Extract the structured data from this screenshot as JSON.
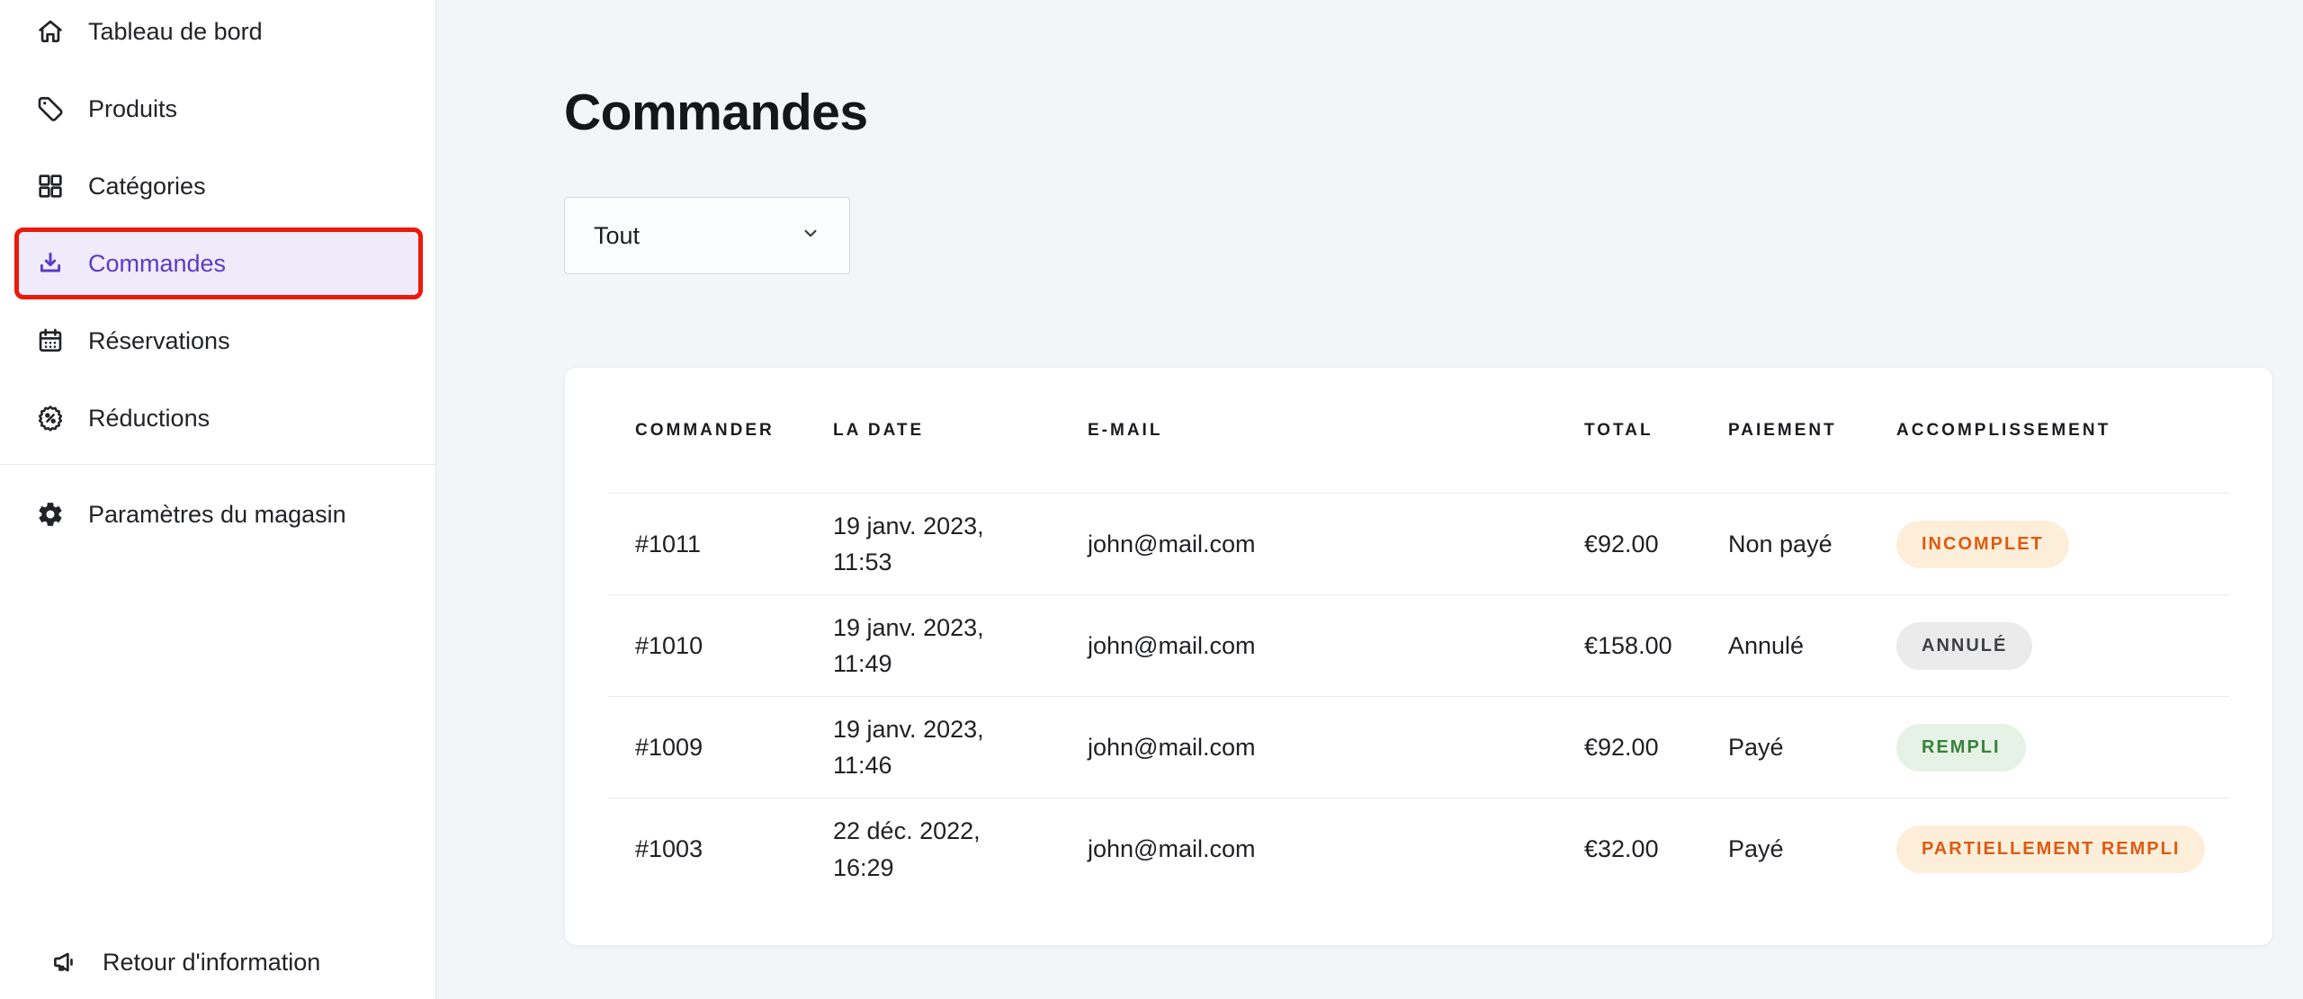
{
  "colors": {
    "accent_purple": "#5b3cc4",
    "accent_purple_bg": "#efebfa",
    "highlight_red": "#ea1b0c",
    "page_bg": "#f4f5f9",
    "badge_warning_bg": "#fdeeda",
    "badge_warning_text": "#dd5b10",
    "badge_neutral_bg": "#ebebec",
    "badge_neutral_text": "#3f4043",
    "badge_success_bg": "#e5f2e5",
    "badge_success_text": "#37813c"
  },
  "sidebar": {
    "items": [
      {
        "id": "dashboard",
        "label": "Tableau de bord",
        "icon": "home-icon",
        "active": false
      },
      {
        "id": "products",
        "label": "Produits",
        "icon": "tag-icon",
        "active": false
      },
      {
        "id": "categories",
        "label": "Catégories",
        "icon": "grid-icon",
        "active": false
      },
      {
        "id": "orders",
        "label": "Commandes",
        "icon": "download-icon",
        "active": true
      },
      {
        "id": "reservations",
        "label": "Réservations",
        "icon": "calendar-icon",
        "active": false
      },
      {
        "id": "discounts",
        "label": "Réductions",
        "icon": "discount-icon",
        "active": false
      }
    ],
    "secondary_items": [
      {
        "id": "store-settings",
        "label": "Paramètres du magasin",
        "icon": "gear-icon",
        "active": false
      }
    ],
    "footer_item": {
      "id": "feedback",
      "label": "Retour d'information",
      "icon": "megaphone-icon"
    }
  },
  "main": {
    "title": "Commandes",
    "filter": {
      "value": "Tout"
    },
    "table": {
      "columns": [
        "COMMANDER",
        "LA DATE",
        "E-MAIL",
        "TOTAL",
        "PAIEMENT",
        "ACCOMPLISSEMENT"
      ],
      "rows": [
        {
          "order": "#1011",
          "date_line1": "19 janv. 2023,",
          "date_line2": "11:53",
          "email": "john@mail.com",
          "total": "€92.00",
          "payment": "Non payé",
          "fulfillment": {
            "label": "INCOMPLET",
            "style": "warning"
          }
        },
        {
          "order": "#1010",
          "date_line1": "19 janv. 2023,",
          "date_line2": "11:49",
          "email": "john@mail.com",
          "total": "€158.00",
          "payment": "Annulé",
          "fulfillment": {
            "label": "ANNULÉ",
            "style": "neutral"
          }
        },
        {
          "order": "#1009",
          "date_line1": "19 janv. 2023,",
          "date_line2": "11:46",
          "email": "john@mail.com",
          "total": "€92.00",
          "payment": "Payé",
          "fulfillment": {
            "label": "REMPLI",
            "style": "success"
          }
        },
        {
          "order": "#1003",
          "date_line1": "22 déc. 2022,",
          "date_line2": "16:29",
          "email": "john@mail.com",
          "total": "€32.00",
          "payment": "Payé",
          "fulfillment": {
            "label": "PARTIELLEMENT REMPLI",
            "style": "warning"
          }
        }
      ]
    }
  }
}
